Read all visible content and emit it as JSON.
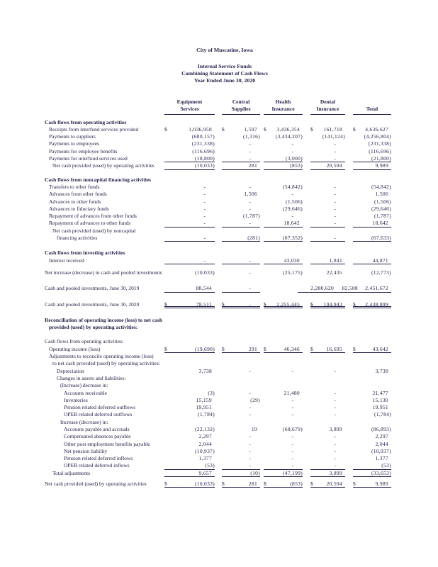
{
  "header": {
    "organization": "City of Muscatine, Iowa",
    "report_line1": "Internal Service Funds",
    "report_line2": "Combining Statement of Cash Flows",
    "report_line3": "Year Ended June 30, 2020"
  },
  "colors": {
    "ink": "#23234a",
    "paper": "#ffffff"
  },
  "table": {
    "currency_symbol": "$",
    "columns": [
      {
        "line1": "Equipment",
        "line2": "Services"
      },
      {
        "line1": "Central",
        "line2": "Supplies"
      },
      {
        "line1": "Health",
        "line2": "Insurance"
      },
      {
        "line1": "Dental",
        "line2": "Insurance"
      },
      {
        "line1": "",
        "line2": "Total"
      }
    ],
    "rows": [
      {
        "t": "h",
        "label": "Cash flows from operating activities",
        "sp": 6
      },
      {
        "t": "r",
        "i": 1,
        "label": "Receipts from interfund services provided",
        "d": true,
        "v": [
          "1,036,958",
          "1,597",
          "3,436,354",
          "161,718",
          "4,636,627"
        ]
      },
      {
        "t": "r",
        "i": 1,
        "label": "Payments to suppliers",
        "v": [
          "(680,157)",
          "(1,316)",
          "(3,434,207)",
          "(141,124)",
          "(4,256,804)"
        ]
      },
      {
        "t": "r",
        "i": 1,
        "label": "Payments to employees",
        "v": [
          "(231,338)",
          "-",
          "-",
          "-",
          "(231,338)"
        ]
      },
      {
        "t": "r",
        "i": 1,
        "label": "Payments for employee benefits",
        "v": [
          "(116,696)",
          "-",
          "-",
          "-",
          "(116,696)"
        ]
      },
      {
        "t": "r",
        "i": 1,
        "label": "Payments for interfund services used",
        "v": [
          "(18,800)",
          "-",
          "(3,000)",
          "-",
          "(21,800)"
        ],
        "rb": "s"
      },
      {
        "t": "r",
        "i": 2,
        "label": "Net cash provided (used) by operating activities",
        "v": [
          "(10,033)",
          "281",
          "(853)",
          "20,594",
          "9,989"
        ],
        "rb": "s"
      },
      {
        "t": "h",
        "label": "Cash flows from noncapital financing activities",
        "sp": 9
      },
      {
        "t": "r",
        "i": 1,
        "label": "Transfers to other funds",
        "v": [
          "-",
          "-",
          "(54,842)",
          "-",
          "(54,842)"
        ]
      },
      {
        "t": "r",
        "i": 1,
        "label": "Advances from other funds",
        "v": [
          "-",
          "1,506",
          "-",
          "-",
          "1,506"
        ]
      },
      {
        "t": "r",
        "i": 1,
        "label": "Advances to other funds",
        "v": [
          "-",
          "-",
          "(1,506)",
          "-",
          "(1,506)"
        ]
      },
      {
        "t": "r",
        "i": 1,
        "label": "Advances to fiduciary funds",
        "v": [
          "-",
          "-",
          "(29,646)",
          "-",
          "(29,646)"
        ]
      },
      {
        "t": "r",
        "i": 1,
        "label": "Repayment of advances from other funds",
        "v": [
          "-",
          "(1,787)",
          "-",
          "-",
          "(1,787)"
        ]
      },
      {
        "t": "r",
        "i": 1,
        "label": "Repayment of advances to other funds",
        "v": [
          "-",
          "-",
          "18,642",
          "-",
          "18,642"
        ],
        "rb": "s"
      },
      {
        "t": "l",
        "i": 2,
        "label": "Net cash provided (used) by noncapital"
      },
      {
        "t": "r",
        "i": 3,
        "label": "financing activities",
        "v": [
          "-",
          "(281)",
          "(67,352)",
          "-",
          "(67,633)"
        ],
        "rb": "s"
      },
      {
        "t": "h",
        "label": "Cash flows from investing activities",
        "sp": 11
      },
      {
        "t": "r",
        "i": 1,
        "label": "Interest received",
        "v": [
          "-",
          "-",
          "43,030",
          "1,841",
          "44,871"
        ],
        "rb": "s"
      },
      {
        "t": "r",
        "i": 0,
        "label": "Net increase (decrease) in cash and pooled investments",
        "sp": 7,
        "v": [
          "(10,033)",
          "-",
          "(25,175)",
          "22,435",
          "(12,773)"
        ]
      },
      {
        "t": "r",
        "i": 0,
        "label": "Cash and pooled investments, June 30, 2019",
        "sp": 12,
        "v": [
          "88,544",
          "-",
          "2,280,620",
          "82,508",
          "2,451,672"
        ],
        "rb": "s",
        "shift": [
          0,
          0,
          48,
          22,
          0
        ]
      },
      {
        "t": "r",
        "i": 0,
        "label": "Cash and pooled investments, June 30, 2020",
        "sp": 12,
        "d": true,
        "v": [
          "78,511",
          "-",
          "2,255,445",
          "104,943",
          "2,438,899"
        ],
        "rb": "d"
      },
      {
        "t": "h",
        "label": "Reconciliation of operating income (loss) to net cash",
        "sp": 12
      },
      {
        "t": "h",
        "i": 1,
        "label": "provided (used) by operating activities:"
      },
      {
        "t": "l",
        "i": 0,
        "label": "Cash flows from operating activities:",
        "sp": 10
      },
      {
        "t": "r",
        "i": 1,
        "label": "Operating income (loss)",
        "d": true,
        "v": [
          "(19,690)",
          "291",
          "46,346",
          "16,695",
          "43,642"
        ],
        "rb": "s"
      },
      {
        "t": "l",
        "i": 1,
        "label": "Adjustments to reconcile operating income (loss)"
      },
      {
        "t": "l",
        "i": 2,
        "label": "to net cash provided (used) by operating activities:"
      },
      {
        "t": "r",
        "i": 3,
        "label": "Depreciation",
        "v": [
          "3,738",
          "-",
          "-",
          "-",
          "3,738"
        ]
      },
      {
        "t": "l",
        "i": 3,
        "label": "Changes in assets and liabilities:"
      },
      {
        "t": "l",
        "i": 4,
        "label": "(Increase) decrease in:"
      },
      {
        "t": "r",
        "i": 5,
        "label": "Accounts receivable",
        "v": [
          "(3)",
          "-",
          "21,480",
          "-",
          "21,477"
        ]
      },
      {
        "t": "r",
        "i": 5,
        "label": "Inventories",
        "v": [
          "15,159",
          "(29)",
          "-",
          "-",
          "15,130"
        ]
      },
      {
        "t": "r",
        "i": 5,
        "label": "Pension related deferred outflows",
        "v": [
          "19,951",
          "-",
          "-",
          "-",
          "19,951"
        ]
      },
      {
        "t": "r",
        "i": 5,
        "label": "OPEB related deferred outflows",
        "v": [
          "(1,784)",
          "-",
          "-",
          "-",
          "(1,784)"
        ]
      },
      {
        "t": "l",
        "i": 4,
        "label": "Increase (decrease) in:"
      },
      {
        "t": "r",
        "i": 5,
        "label": "Accounts payable and accruals",
        "v": [
          "(22,132)",
          "19",
          "(68,679)",
          "3,899",
          "(86,893)"
        ]
      },
      {
        "t": "r",
        "i": 5,
        "label": "Compensated absences payable",
        "v": [
          "2,297",
          "-",
          "-",
          "-",
          "2,297"
        ]
      },
      {
        "t": "r",
        "i": 5,
        "label": "Other post employment benefits payable",
        "v": [
          "2,044",
          "-",
          "-",
          "-",
          "2,044"
        ]
      },
      {
        "t": "r",
        "i": 5,
        "label": "Net pension liability",
        "v": [
          "(10,937)",
          "-",
          "-",
          "-",
          "(10,937)"
        ]
      },
      {
        "t": "r",
        "i": 5,
        "label": "Pension related deferred inflows",
        "v": [
          "1,377",
          "-",
          "-",
          "-",
          "1,377"
        ]
      },
      {
        "t": "r",
        "i": 5,
        "label": "OPEB related deferred inflows",
        "v": [
          "(53)",
          "-",
          "-",
          "-",
          "(53)"
        ],
        "rb": "s"
      },
      {
        "t": "r",
        "i": 2,
        "label": "Total adjustments",
        "v": [
          "9,657",
          "(10)",
          "(47,199)",
          "3,899",
          "(33,653)"
        ],
        "rb": "s"
      },
      {
        "t": "r",
        "i": 0,
        "label": "Net cash provided (used) by operating activities",
        "sp": 5,
        "d": true,
        "v": [
          "(10,033)",
          "281",
          "(853)",
          "20,594",
          "9,989"
        ],
        "rb": "s"
      }
    ]
  }
}
